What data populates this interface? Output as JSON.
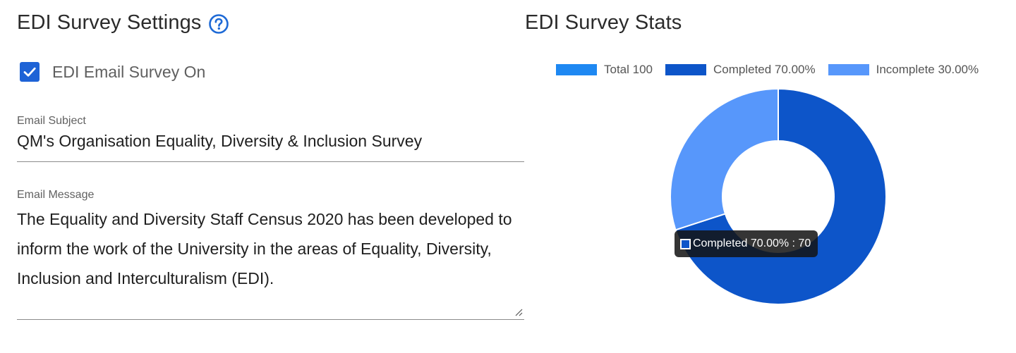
{
  "settings": {
    "title": "EDI Survey Settings",
    "help_icon": "question-circle-icon",
    "email_survey_toggle": {
      "label": "EDI Email Survey On",
      "checked": true
    },
    "email_subject": {
      "label": "Email Subject",
      "value": "QM's Organisation Equality, Diversity & Inclusion Survey"
    },
    "email_message": {
      "label": "Email Message",
      "value": "The Equality and Diversity Staff Census 2020 has been developed to inform the work of the University in the areas of Equality, Diversity, Inclusion and Interculturalism (EDI)."
    }
  },
  "stats": {
    "title": "EDI Survey Stats",
    "legend": [
      {
        "label": "Total 100",
        "color": "#1e88f2"
      },
      {
        "label": "Completed 70.00%",
        "color": "#0d55c9"
      },
      {
        "label": "Incomplete 30.00%",
        "color": "#5797fb"
      }
    ],
    "tooltip": {
      "text": "Completed 70.00% : 70"
    }
  },
  "chart_data": {
    "type": "pie",
    "variant": "donut",
    "categories": [
      "Completed",
      "Incomplete"
    ],
    "values": [
      70,
      30
    ],
    "colors": [
      "#0d55c9",
      "#5797fb"
    ],
    "total": 100
  },
  "colors": {
    "accent": "#1e63d6",
    "completed": "#0d55c9",
    "incomplete": "#5797fb",
    "total": "#1e88f2"
  }
}
